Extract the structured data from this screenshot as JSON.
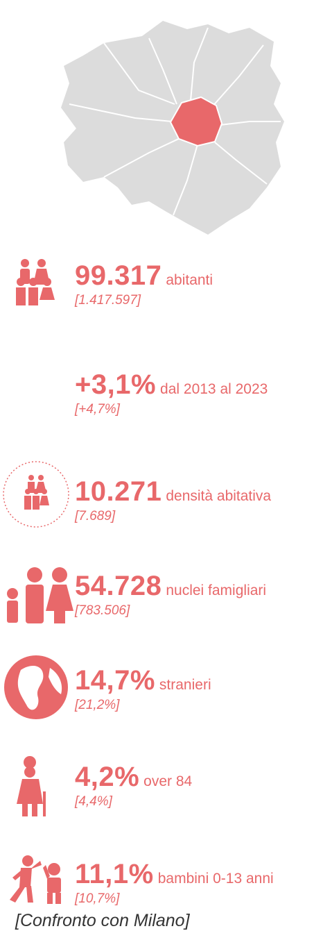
{
  "stats": [
    {
      "value": "99.317",
      "label": "abitanti",
      "comparison": "[1.417.597]"
    },
    {
      "value": "+3,1%",
      "label": "dal 2013 al 2023",
      "comparison": "[+4,7%]"
    },
    {
      "value": "10.271",
      "label": "densità abitativa",
      "comparison": "[7.689]"
    },
    {
      "value": "54.728",
      "label": "nuclei famigliari",
      "comparison": "[783.506]"
    },
    {
      "value": "14,7%",
      "label": "stranieri",
      "comparison": "[21,2%]"
    },
    {
      "value": "4,2%",
      "label": "over 84",
      "comparison": "[4,4%]"
    },
    {
      "value": "11,1%",
      "label": "bambini 0-13 anni",
      "comparison": "[10,7%]"
    }
  ],
  "footer": "[Confronto con Milano]"
}
